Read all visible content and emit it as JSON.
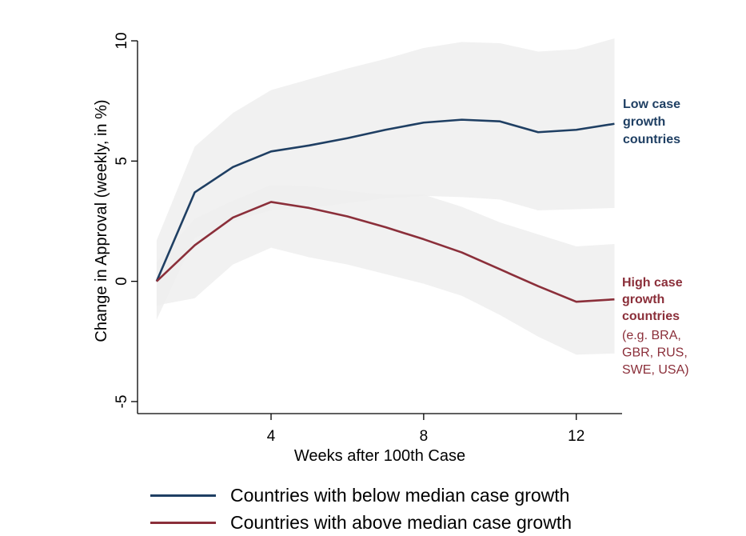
{
  "chart_data": {
    "type": "line",
    "xlabel": "Weeks after 100th Case",
    "ylabel": "Change in Approval (weekly, in %)",
    "xlim": [
      0.5,
      13.2
    ],
    "ylim": [
      -5.5,
      10.3
    ],
    "xticks": [
      4,
      8,
      12
    ],
    "yticks": [
      -5,
      0,
      5,
      10
    ],
    "x": [
      1,
      2,
      3,
      4,
      5,
      6,
      7,
      8,
      9,
      10,
      11,
      12,
      13
    ],
    "series": [
      {
        "name": "Countries with below median case growth",
        "color": "#1f3f63",
        "values": [
          0.0,
          3.7,
          4.75,
          5.4,
          5.65,
          5.95,
          6.3,
          6.6,
          6.72,
          6.65,
          6.2,
          6.3,
          6.55
        ],
        "ci_upper": [
          1.7,
          5.6,
          7.0,
          7.95,
          8.4,
          8.85,
          9.25,
          9.7,
          9.95,
          9.9,
          9.55,
          9.65,
          10.1
        ],
        "ci_lower": [
          -1.6,
          1.8,
          2.5,
          2.95,
          3.05,
          3.25,
          3.45,
          3.55,
          3.5,
          3.4,
          2.95,
          3.0,
          3.05
        ]
      },
      {
        "name": "Countries with above median case growth",
        "color": "#8b2f3a",
        "values": [
          0.0,
          1.5,
          2.65,
          3.3,
          3.05,
          2.7,
          2.25,
          1.75,
          1.2,
          0.5,
          -0.2,
          -0.85,
          -0.75
        ],
        "ci_upper": [
          0.8,
          2.6,
          3.35,
          4.0,
          3.95,
          3.75,
          3.6,
          3.6,
          3.1,
          2.45,
          1.95,
          1.45,
          1.55
        ],
        "ci_lower": [
          -1.0,
          -0.7,
          0.7,
          1.4,
          1.0,
          0.7,
          0.3,
          -0.1,
          -0.6,
          -1.4,
          -2.3,
          -3.05,
          -3.0
        ]
      }
    ],
    "band_color": "#efefef",
    "annotations": {
      "low": {
        "lines": [
          "Low case",
          "growth",
          "countries"
        ],
        "color": "#1f3f63"
      },
      "high": {
        "bold_lines": [
          "High case",
          "growth",
          "countries"
        ],
        "plain_lines": [
          "(e.g. BRA,",
          "GBR, RUS,",
          "SWE, USA)"
        ],
        "color": "#8b2f3a"
      }
    },
    "legend_position": "bottom"
  }
}
